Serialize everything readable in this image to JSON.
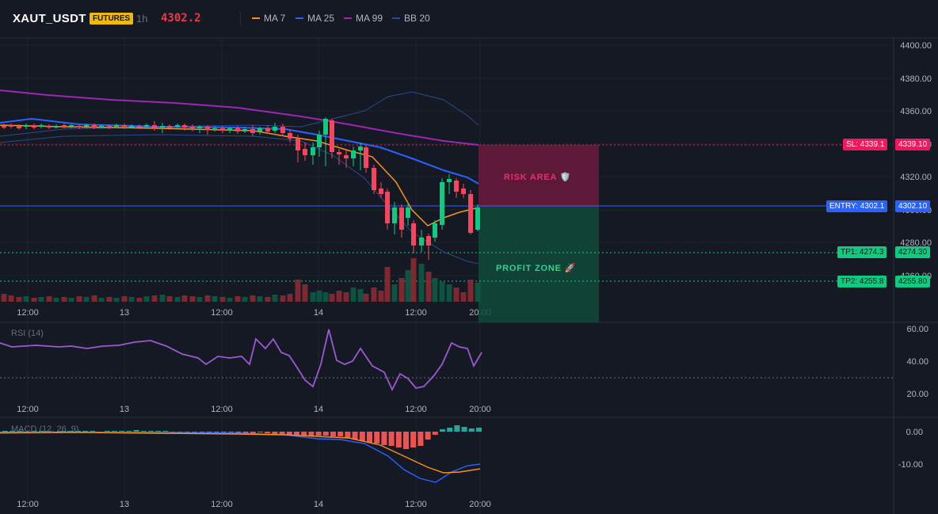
{
  "header": {
    "symbol": "XAUT_USDT",
    "badge": "FUTURES",
    "timeframe": "1h",
    "last_price": "4302.2",
    "legend": [
      {
        "label": "MA 7",
        "color": "#f7931a"
      },
      {
        "label": "MA 25",
        "color": "#2962ff"
      },
      {
        "label": "MA 99",
        "color": "#9c27b0"
      },
      {
        "label": "BB 20",
        "color": "#2a4a8f"
      }
    ]
  },
  "price_axis": [
    "4400.00",
    "4380.00",
    "4360.00",
    "4340.00",
    "4320.00",
    "4300.00",
    "4280.00",
    "4260.00"
  ],
  "time_axis": [
    "12:00",
    "13",
    "12:00",
    "14",
    "12:00",
    "20:00"
  ],
  "zones": {
    "risk_label": "RISK AREA 🛡️",
    "profit_label": "PROFIT ZONE 🚀"
  },
  "levels": {
    "sl_label": "SL: 4339.1",
    "sl_value": "4339.10",
    "entry_label": "ENTRY: 4302.1",
    "entry_value": "4302.10",
    "tp1_label": "TP1: 4274.3",
    "tp1_value": "4274.30",
    "tp2_label": "TP2: 4255.8",
    "tp2_value": "4255.80"
  },
  "rsi": {
    "title": "RSI (14)",
    "axis": [
      "60.00",
      "40.00",
      "20.00"
    ]
  },
  "macd": {
    "title": "MACD (12, 26, 9)",
    "axis": [
      "0.00",
      "-10.00"
    ]
  },
  "colors": {
    "up": "#0ecb81",
    "down": "#f6465d",
    "risk": "#6b1a3c",
    "profit": "#0f4a3a"
  }
}
